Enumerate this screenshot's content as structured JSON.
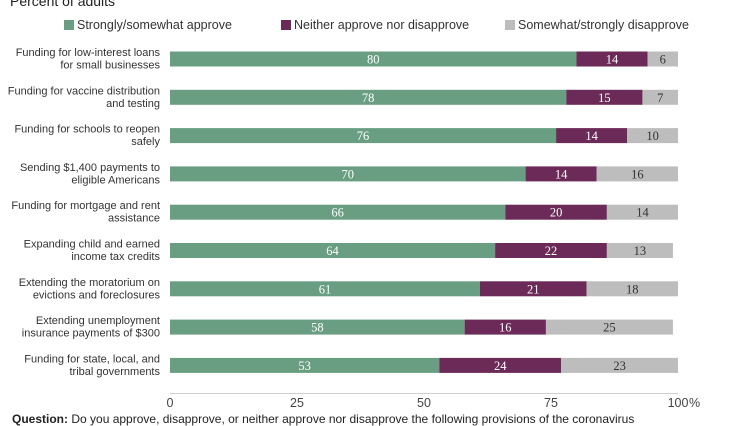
{
  "subtitle": "Percent of adults",
  "legend": [
    {
      "label": "Strongly/somewhat approve",
      "color": "#6a9e82"
    },
    {
      "label": "Neither approve nor disapprove",
      "color": "#6b2a57"
    },
    {
      "label": "Somewhat/strongly disapprove",
      "color": "#bdbdbd"
    }
  ],
  "question": {
    "label": "Question:",
    "text": "Do you approve, disapprove, or neither approve nor disapprove the following provisions of the coronavirus"
  },
  "chart_data": {
    "type": "bar",
    "orientation": "horizontal",
    "stacked": true,
    "categories": [
      [
        "Funding for low-interest loans",
        "for small businesses"
      ],
      [
        "Funding for vaccine distribution",
        "and testing"
      ],
      [
        "Funding for schools to reopen",
        "safely"
      ],
      [
        "Sending $1,400 payments to",
        "eligible Americans"
      ],
      [
        "Funding for mortgage and rent",
        "assistance"
      ],
      [
        "Expanding child and earned",
        "income tax credits"
      ],
      [
        "Extending the moratorium on",
        "evictions and foreclosures"
      ],
      [
        "Extending unemployment",
        "insurance payments of $300"
      ],
      [
        "Funding for state, local, and",
        "tribal governments"
      ]
    ],
    "series": [
      {
        "name": "Strongly/somewhat approve",
        "color": "#6a9e82",
        "label_color": "#ffffff",
        "values": [
          80,
          78,
          76,
          70,
          66,
          64,
          61,
          58,
          53
        ]
      },
      {
        "name": "Neither approve nor disapprove",
        "color": "#6b2a57",
        "label_color": "#ffffff",
        "values": [
          14,
          15,
          14,
          14,
          20,
          22,
          21,
          16,
          24
        ]
      },
      {
        "name": "Somewhat/strongly disapprove",
        "color": "#bdbdbd",
        "label_color": "#333333",
        "values": [
          6,
          7,
          10,
          16,
          14,
          13,
          18,
          25,
          23
        ]
      }
    ],
    "xlim": [
      0,
      100
    ],
    "xticks": [
      0,
      25,
      50,
      75,
      100
    ],
    "xtick_labels": [
      "0",
      "25",
      "50",
      "75",
      "100"
    ],
    "x_unit": "%",
    "grid": false,
    "legend_position": "top"
  }
}
